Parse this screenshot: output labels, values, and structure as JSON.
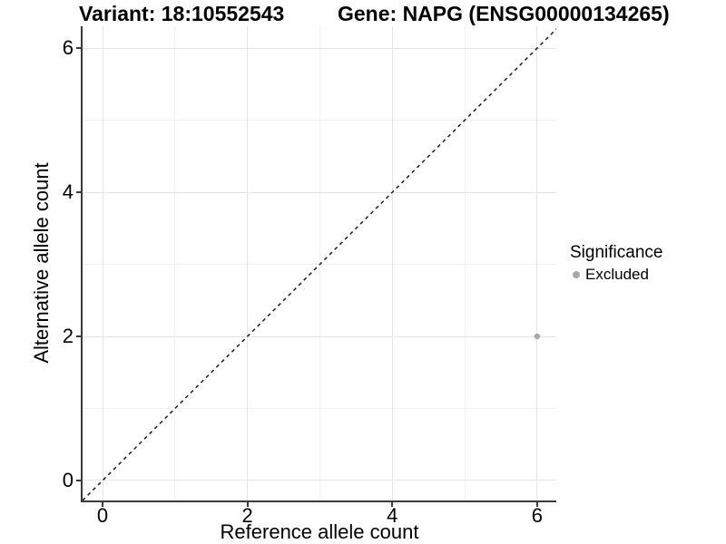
{
  "titles": {
    "variant": "Variant: 18:10552543",
    "gene": "Gene: NAPG (ENSG00000134265)"
  },
  "chart_data": {
    "type": "scatter",
    "xlabel": "Reference allele count",
    "ylabel": "Alternative allele count",
    "xlim": [
      -0.276,
      6.264
    ],
    "ylim": [
      -0.277,
      6.303
    ],
    "x_ticks": [
      0,
      2,
      4,
      6
    ],
    "y_ticks": [
      0,
      2,
      4,
      6
    ],
    "x_minor_ticks": [
      1,
      3,
      5
    ],
    "y_minor_ticks": [
      1,
      3,
      5
    ],
    "grid": true,
    "points": [
      {
        "x": 6,
        "y": 2,
        "series": "Excluded"
      }
    ],
    "identity_line": {
      "style": "dashed",
      "slope": 1,
      "intercept": 0
    },
    "legend": {
      "title": "Significance",
      "position": "right",
      "items": [
        {
          "label": "Excluded",
          "color": "#a8a8a8"
        }
      ]
    }
  },
  "colors": {
    "axis_line": "#3a3a3a",
    "grid_major": "#e4e4e4",
    "grid_minor": "#f1f1f1",
    "point": "#a8a8a8",
    "dashed_line": "#1a1a1a",
    "text": "#000000",
    "background": "#ffffff"
  }
}
